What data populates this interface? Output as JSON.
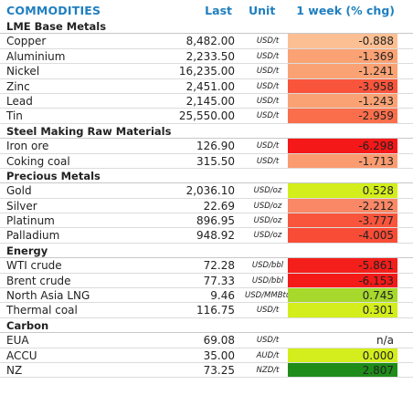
{
  "header": {
    "name": "COMMODITIES",
    "last": "Last",
    "unit": "Unit",
    "change": "1 week (% chg)"
  },
  "sections": [
    {
      "title": "LME Base Metals",
      "rows": [
        {
          "name": "Copper",
          "last": "8,482.00",
          "unit": "USD/t",
          "chg": "-0.888",
          "color": "#fcbf93"
        },
        {
          "name": "Aluminium",
          "last": "2,233.50",
          "unit": "USD/t",
          "chg": "-1.369",
          "color": "#fba274"
        },
        {
          "name": "Nickel",
          "last": "16,235.00",
          "unit": "USD/t",
          "chg": "-1.241",
          "color": "#fba274"
        },
        {
          "name": "Zinc",
          "last": "2,451.00",
          "unit": "USD/t",
          "chg": "-3.958",
          "color": "#f9553c"
        },
        {
          "name": "Lead",
          "last": "2,145.00",
          "unit": "USD/t",
          "chg": "-1.243",
          "color": "#fba274"
        },
        {
          "name": "Tin",
          "last": "25,550.00",
          "unit": "USD/t",
          "chg": "-2.959",
          "color": "#fa6e4b"
        }
      ]
    },
    {
      "title": "Steel Making Raw Materials",
      "rows": [
        {
          "name": "Iron ore",
          "last": "126.90",
          "unit": "USD/t",
          "chg": "-6.298",
          "color": "#f51818"
        },
        {
          "name": "Coking coal",
          "last": "315.50",
          "unit": "USD/t",
          "chg": "-1.713",
          "color": "#fb9b70"
        }
      ]
    },
    {
      "title": "Precious Metals",
      "rows": [
        {
          "name": "Gold",
          "last": "2,036.10",
          "unit": "USD/oz",
          "chg": "0.528",
          "color": "#d3ee1c"
        },
        {
          "name": "Silver",
          "last": "22.69",
          "unit": "USD/oz",
          "chg": "-2.212",
          "color": "#fa8866"
        },
        {
          "name": "Platinum",
          "last": "896.95",
          "unit": "USD/oz",
          "chg": "-3.777",
          "color": "#f9553c"
        },
        {
          "name": "Palladium",
          "last": "948.92",
          "unit": "USD/oz",
          "chg": "-4.005",
          "color": "#f84c36"
        }
      ]
    },
    {
      "title": "Energy",
      "rows": [
        {
          "name": "WTI crude",
          "last": "72.28",
          "unit": "USD/bbl",
          "chg": "-5.861",
          "color": "#f41e1a"
        },
        {
          "name": "Brent crude",
          "last": "77.33",
          "unit": "USD/bbl",
          "chg": "-6.153",
          "color": "#f41a18"
        },
        {
          "name": "North Asia LNG",
          "last": "9.46",
          "unit": "USD/MMBtu",
          "chg": "0.745",
          "color": "#a7d82c"
        },
        {
          "name": "Thermal coal",
          "last": "116.75",
          "unit": "USD/t",
          "chg": "0.301",
          "color": "#d3ee1c"
        }
      ]
    },
    {
      "title": "Carbon",
      "rows": [
        {
          "name": "EUA",
          "last": "69.08",
          "unit": "USD/t",
          "chg": "n/a",
          "color": ""
        },
        {
          "name": "ACCU",
          "last": "35.00",
          "unit": "AUD/t",
          "chg": "0.000",
          "color": "#d3ee1c"
        },
        {
          "name": "NZ",
          "last": "73.25",
          "unit": "NZD/t",
          "chg": "2.807",
          "color": "#1f8c1a"
        }
      ]
    }
  ]
}
